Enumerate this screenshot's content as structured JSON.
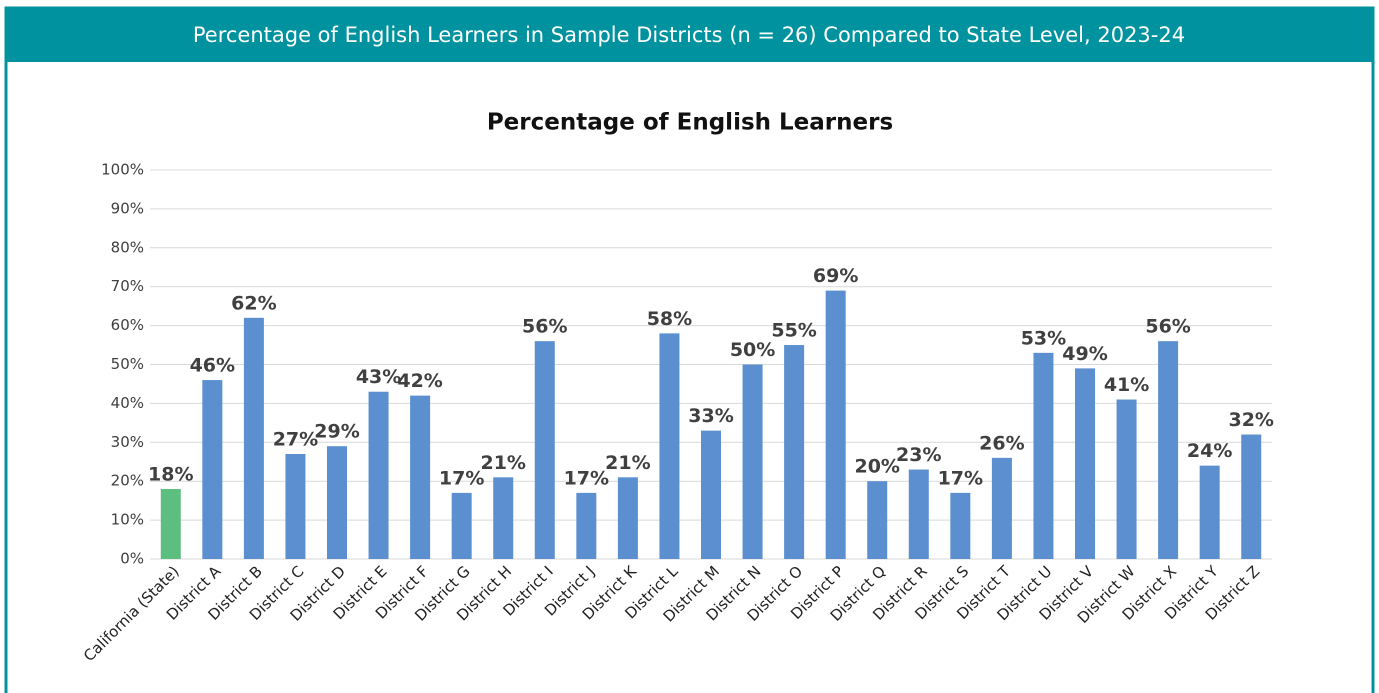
{
  "header": {
    "title": "Percentage of English Learners in Sample Districts (n = 26) Compared to State Level, 2023-24"
  },
  "chart_data": {
    "type": "bar",
    "title": "Percentage of English Learners",
    "categories": [
      "California (State)",
      "District A",
      "District B",
      "District C",
      "District D",
      "District E",
      "District F",
      "District G",
      "District H",
      "District I",
      "District J",
      "District K",
      "District L",
      "District M",
      "District N",
      "District O",
      "District P",
      "District Q",
      "District R",
      "District S",
      "District T",
      "District U",
      "District V",
      "District W",
      "District X",
      "District Y",
      "District Z"
    ],
    "values": [
      18,
      46,
      62,
      27,
      29,
      43,
      42,
      17,
      21,
      56,
      17,
      21,
      58,
      33,
      50,
      55,
      69,
      20,
      23,
      17,
      26,
      53,
      49,
      41,
      56,
      24,
      32
    ],
    "value_labels": [
      "18%",
      "46%",
      "62%",
      "27%",
      "29%",
      "43%",
      "42%",
      "17%",
      "21%",
      "56%",
      "17%",
      "21%",
      "58%",
      "33%",
      "50%",
      "55%",
      "69%",
      "20%",
      "23%",
      "17%",
      "26%",
      "53%",
      "49%",
      "41%",
      "56%",
      "24%",
      "32%"
    ],
    "colors": [
      "#5cbf7f",
      "#5b8fd0",
      "#5b8fd0",
      "#5b8fd0",
      "#5b8fd0",
      "#5b8fd0",
      "#5b8fd0",
      "#5b8fd0",
      "#5b8fd0",
      "#5b8fd0",
      "#5b8fd0",
      "#5b8fd0",
      "#5b8fd0",
      "#5b8fd0",
      "#5b8fd0",
      "#5b8fd0",
      "#5b8fd0",
      "#5b8fd0",
      "#5b8fd0",
      "#5b8fd0",
      "#5b8fd0",
      "#5b8fd0",
      "#5b8fd0",
      "#5b8fd0",
      "#5b8fd0",
      "#5b8fd0",
      "#5b8fd0"
    ],
    "ylim": [
      0,
      100
    ],
    "yticks": [
      {
        "value": 0,
        "label": "0%"
      },
      {
        "value": 10,
        "label": "10%"
      },
      {
        "value": 20,
        "label": "20%"
      },
      {
        "value": 30,
        "label": "30%"
      },
      {
        "value": 40,
        "label": "40%"
      },
      {
        "value": 50,
        "label": "50%"
      },
      {
        "value": 60,
        "label": "60%"
      },
      {
        "value": 70,
        "label": "70%"
      },
      {
        "value": 80,
        "label": "80%"
      },
      {
        "value": 90,
        "label": "90%"
      },
      {
        "value": 100,
        "label": "100%"
      }
    ],
    "grid": true
  }
}
